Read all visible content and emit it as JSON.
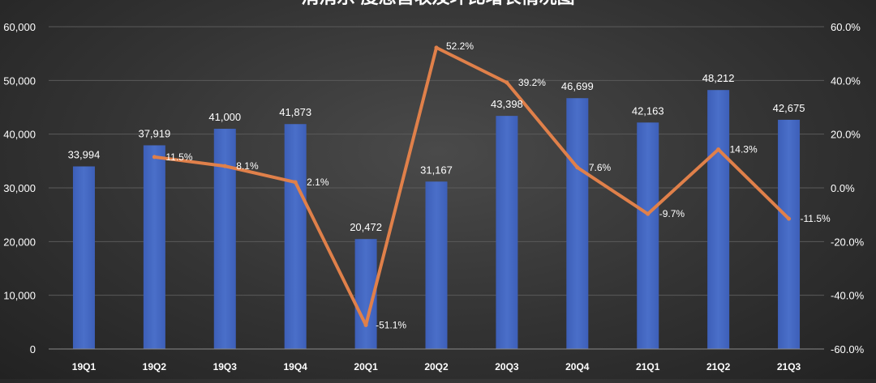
{
  "chart_data": {
    "type": "bar",
    "title": "消消乐·度思营收及环比增长情况图",
    "categories": [
      "19Q1",
      "19Q2",
      "19Q3",
      "19Q4",
      "20Q1",
      "20Q2",
      "20Q3",
      "20Q4",
      "21Q1",
      "21Q2",
      "21Q3"
    ],
    "series": [
      {
        "type": "bar",
        "values": [
          33994,
          37919,
          41000,
          41873,
          20472,
          31167,
          43398,
          46699,
          42163,
          48212,
          42675
        ],
        "labels": [
          "33,994",
          "37,919",
          "41,000",
          "41,873",
          "20,472",
          "31,167",
          "43,398",
          "46,699",
          "42,163",
          "48,212",
          "42,675"
        ],
        "color": "#4a6fc9",
        "axis": "left"
      },
      {
        "type": "line",
        "values": [
          null,
          11.5,
          8.1,
          2.1,
          -51.1,
          52.2,
          39.2,
          7.6,
          -9.7,
          14.3,
          -11.5
        ],
        "labels": [
          "",
          "11.5%",
          "8.1%",
          "2.1%",
          "-51.1%",
          "52.2%",
          "39.2%",
          "7.6%",
          "-9.7%",
          "14.3%",
          "-11.5%"
        ],
        "color": "#e0804a",
        "axis": "right"
      }
    ],
    "ylim_left": [
      0,
      60000
    ],
    "yticks_left": [
      0,
      10000,
      20000,
      30000,
      40000,
      50000,
      60000
    ],
    "yticks_left_labels": [
      "0",
      "10,000",
      "20,000",
      "30,000",
      "40,000",
      "50,000",
      "60,000"
    ],
    "ylim_right": [
      -60,
      60
    ],
    "yticks_right": [
      -60,
      -40,
      -20,
      0,
      20,
      40,
      60
    ],
    "yticks_right_labels": [
      "-60.0%",
      "-40.0%",
      "-20.0%",
      "0.0%",
      "20.0%",
      "40.0%",
      "60.0%"
    ],
    "grid": true,
    "legend": "none"
  }
}
